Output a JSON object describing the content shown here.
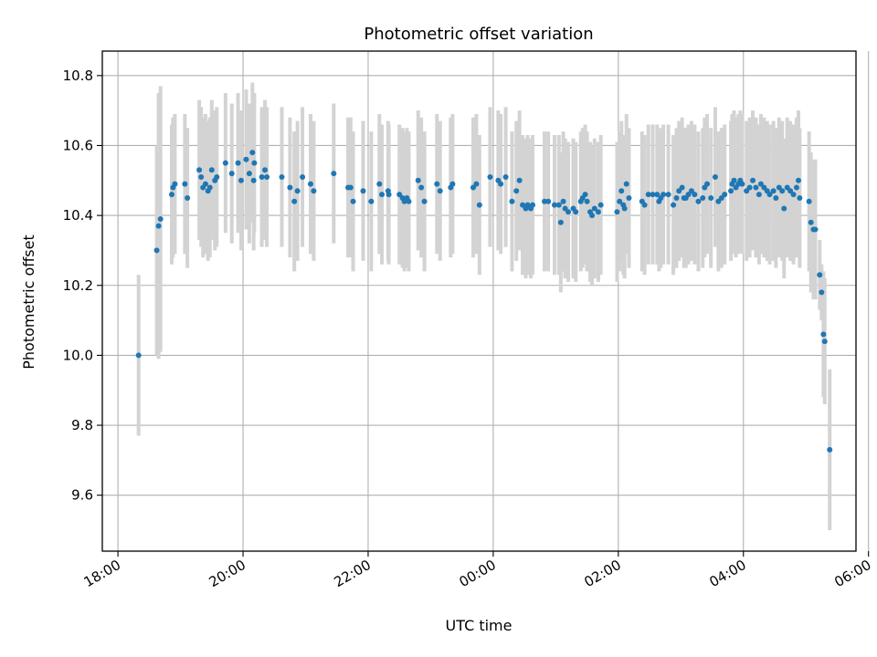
{
  "chart_data": {
    "type": "scatter",
    "title": "Photometric offset variation",
    "xlabel": "UTC time",
    "ylabel": "Photometric offset",
    "grid": true,
    "x_unit": "hours since 18:00 UTC",
    "xlim": [
      -0.25,
      11.8
    ],
    "ylim": [
      9.44,
      10.87
    ],
    "x_ticks": [
      0,
      2,
      4,
      6,
      8,
      10,
      12
    ],
    "x_tick_labels": [
      "18:00",
      "20:00",
      "22:00",
      "00:00",
      "02:00",
      "04:00",
      "06:00"
    ],
    "y_ticks": [
      9.6,
      9.8,
      10.0,
      10.2,
      10.4,
      10.6,
      10.8
    ],
    "y_tick_labels": [
      "9.6",
      "9.8",
      "10.0",
      "10.2",
      "10.4",
      "10.6",
      "10.8"
    ],
    "colors": {
      "point": "#1f77b4",
      "errorbar": "#d3d3d3",
      "grid": "#b0b0b0"
    },
    "points": [
      [
        0.33,
        10.0,
        0.23
      ],
      [
        0.62,
        10.3,
        0.3
      ],
      [
        0.65,
        10.37,
        0.38
      ],
      [
        0.68,
        10.39,
        0.38
      ],
      [
        0.86,
        10.46,
        0.2
      ],
      [
        0.88,
        10.48,
        0.2
      ],
      [
        0.91,
        10.49,
        0.2
      ],
      [
        1.07,
        10.49,
        0.2
      ],
      [
        1.11,
        10.45,
        0.2
      ],
      [
        1.3,
        10.53,
        0.2
      ],
      [
        1.33,
        10.51,
        0.2
      ],
      [
        1.36,
        10.48,
        0.2
      ],
      [
        1.4,
        10.49,
        0.2
      ],
      [
        1.44,
        10.47,
        0.2
      ],
      [
        1.47,
        10.48,
        0.2
      ],
      [
        1.5,
        10.53,
        0.2
      ],
      [
        1.55,
        10.5,
        0.2
      ],
      [
        1.58,
        10.51,
        0.2
      ],
      [
        1.72,
        10.55,
        0.2
      ],
      [
        1.82,
        10.52,
        0.2
      ],
      [
        1.92,
        10.55,
        0.2
      ],
      [
        1.97,
        10.5,
        0.2
      ],
      [
        2.05,
        10.56,
        0.2
      ],
      [
        2.1,
        10.52,
        0.2
      ],
      [
        2.15,
        10.58,
        0.2
      ],
      [
        2.18,
        10.55,
        0.2
      ],
      [
        2.17,
        10.5,
        0.2
      ],
      [
        2.3,
        10.51,
        0.2
      ],
      [
        2.35,
        10.53,
        0.2
      ],
      [
        2.38,
        10.51,
        0.2
      ],
      [
        2.62,
        10.51,
        0.2
      ],
      [
        2.75,
        10.48,
        0.2
      ],
      [
        2.82,
        10.44,
        0.2
      ],
      [
        2.87,
        10.47,
        0.2
      ],
      [
        2.95,
        10.51,
        0.2
      ],
      [
        3.08,
        10.49,
        0.2
      ],
      [
        3.13,
        10.47,
        0.2
      ],
      [
        3.45,
        10.52,
        0.2
      ],
      [
        3.68,
        10.48,
        0.2
      ],
      [
        3.72,
        10.48,
        0.2
      ],
      [
        3.76,
        10.44,
        0.2
      ],
      [
        3.92,
        10.47,
        0.2
      ],
      [
        4.05,
        10.44,
        0.2
      ],
      [
        4.18,
        10.49,
        0.2
      ],
      [
        4.22,
        10.46,
        0.2
      ],
      [
        4.32,
        10.47,
        0.2
      ],
      [
        4.33,
        10.46,
        0.2
      ],
      [
        4.5,
        10.46,
        0.2
      ],
      [
        4.55,
        10.45,
        0.2
      ],
      [
        4.58,
        10.44,
        0.2
      ],
      [
        4.62,
        10.45,
        0.2
      ],
      [
        4.65,
        10.44,
        0.2
      ],
      [
        4.8,
        10.5,
        0.2
      ],
      [
        4.85,
        10.48,
        0.2
      ],
      [
        4.9,
        10.44,
        0.2
      ],
      [
        5.1,
        10.49,
        0.2
      ],
      [
        5.15,
        10.47,
        0.2
      ],
      [
        5.32,
        10.48,
        0.2
      ],
      [
        5.35,
        10.49,
        0.2
      ],
      [
        5.68,
        10.48,
        0.2
      ],
      [
        5.73,
        10.49,
        0.2
      ],
      [
        5.78,
        10.43,
        0.2
      ],
      [
        5.95,
        10.51,
        0.2
      ],
      [
        6.08,
        10.5,
        0.2
      ],
      [
        6.12,
        10.49,
        0.2
      ],
      [
        6.2,
        10.51,
        0.2
      ],
      [
        6.3,
        10.44,
        0.2
      ],
      [
        6.37,
        10.47,
        0.2
      ],
      [
        6.42,
        10.5,
        0.2
      ],
      [
        6.47,
        10.43,
        0.2
      ],
      [
        6.52,
        10.42,
        0.2
      ],
      [
        6.55,
        10.43,
        0.2
      ],
      [
        6.6,
        10.42,
        0.2
      ],
      [
        6.63,
        10.43,
        0.2
      ],
      [
        6.82,
        10.44,
        0.2
      ],
      [
        6.88,
        10.44,
        0.2
      ],
      [
        6.98,
        10.43,
        0.2
      ],
      [
        7.05,
        10.43,
        0.2
      ],
      [
        7.08,
        10.38,
        0.2
      ],
      [
        7.12,
        10.44,
        0.2
      ],
      [
        7.15,
        10.42,
        0.2
      ],
      [
        7.2,
        10.41,
        0.2
      ],
      [
        7.28,
        10.42,
        0.2
      ],
      [
        7.32,
        10.41,
        0.2
      ],
      [
        7.4,
        10.44,
        0.2
      ],
      [
        7.43,
        10.45,
        0.2
      ],
      [
        7.47,
        10.46,
        0.2
      ],
      [
        7.5,
        10.44,
        0.2
      ],
      [
        7.55,
        10.41,
        0.2
      ],
      [
        7.58,
        10.4,
        0.2
      ],
      [
        7.62,
        10.42,
        0.2
      ],
      [
        7.68,
        10.41,
        0.2
      ],
      [
        7.72,
        10.43,
        0.2
      ],
      [
        7.98,
        10.41,
        0.2
      ],
      [
        8.02,
        10.44,
        0.2
      ],
      [
        8.05,
        10.47,
        0.2
      ],
      [
        8.08,
        10.43,
        0.2
      ],
      [
        8.1,
        10.42,
        0.2
      ],
      [
        8.13,
        10.49,
        0.2
      ],
      [
        8.17,
        10.45,
        0.2
      ],
      [
        8.38,
        10.44,
        0.2
      ],
      [
        8.42,
        10.43,
        0.2
      ],
      [
        8.48,
        10.46,
        0.2
      ],
      [
        8.55,
        10.46,
        0.2
      ],
      [
        8.62,
        10.46,
        0.2
      ],
      [
        8.65,
        10.44,
        0.2
      ],
      [
        8.68,
        10.45,
        0.2
      ],
      [
        8.72,
        10.46,
        0.2
      ],
      [
        8.8,
        10.46,
        0.2
      ],
      [
        8.88,
        10.43,
        0.2
      ],
      [
        8.93,
        10.45,
        0.2
      ],
      [
        8.97,
        10.47,
        0.2
      ],
      [
        9.02,
        10.48,
        0.2
      ],
      [
        9.05,
        10.45,
        0.2
      ],
      [
        9.08,
        10.45,
        0.2
      ],
      [
        9.12,
        10.46,
        0.2
      ],
      [
        9.17,
        10.47,
        0.2
      ],
      [
        9.22,
        10.46,
        0.2
      ],
      [
        9.28,
        10.44,
        0.2
      ],
      [
        9.35,
        10.45,
        0.2
      ],
      [
        9.38,
        10.48,
        0.2
      ],
      [
        9.42,
        10.49,
        0.2
      ],
      [
        9.48,
        10.45,
        0.2
      ],
      [
        9.55,
        10.51,
        0.2
      ],
      [
        9.6,
        10.44,
        0.2
      ],
      [
        9.65,
        10.45,
        0.2
      ],
      [
        9.7,
        10.46,
        0.2
      ],
      [
        9.8,
        10.47,
        0.2
      ],
      [
        9.82,
        10.49,
        0.2
      ],
      [
        9.85,
        10.5,
        0.2
      ],
      [
        9.88,
        10.48,
        0.2
      ],
      [
        9.92,
        10.49,
        0.2
      ],
      [
        9.95,
        10.5,
        0.2
      ],
      [
        9.98,
        10.49,
        0.2
      ],
      [
        10.05,
        10.47,
        0.2
      ],
      [
        10.1,
        10.48,
        0.2
      ],
      [
        10.15,
        10.5,
        0.2
      ],
      [
        10.2,
        10.48,
        0.2
      ],
      [
        10.25,
        10.46,
        0.2
      ],
      [
        10.28,
        10.49,
        0.2
      ],
      [
        10.33,
        10.48,
        0.2
      ],
      [
        10.38,
        10.47,
        0.2
      ],
      [
        10.42,
        10.46,
        0.2
      ],
      [
        10.48,
        10.47,
        0.2
      ],
      [
        10.52,
        10.45,
        0.2
      ],
      [
        10.57,
        10.48,
        0.2
      ],
      [
        10.62,
        10.47,
        0.2
      ],
      [
        10.65,
        10.42,
        0.2
      ],
      [
        10.7,
        10.48,
        0.2
      ],
      [
        10.75,
        10.47,
        0.2
      ],
      [
        10.8,
        10.46,
        0.2
      ],
      [
        10.85,
        10.48,
        0.2
      ],
      [
        10.88,
        10.5,
        0.2
      ],
      [
        10.9,
        10.45,
        0.2
      ],
      [
        11.05,
        10.44,
        0.2
      ],
      [
        11.08,
        10.38,
        0.2
      ],
      [
        11.12,
        10.36,
        0.2
      ],
      [
        11.15,
        10.36,
        0.2
      ],
      [
        11.22,
        10.23,
        0.1
      ],
      [
        11.25,
        10.18,
        0.08
      ],
      [
        11.28,
        10.06,
        0.18
      ],
      [
        11.3,
        10.04,
        0.18
      ],
      [
        11.38,
        9.73,
        0.23
      ]
    ]
  }
}
